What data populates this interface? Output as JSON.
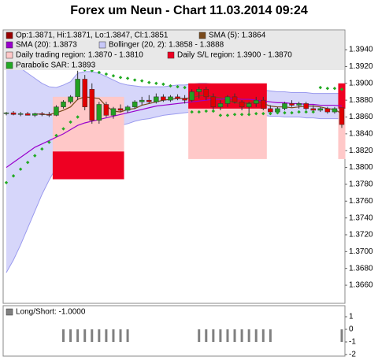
{
  "chart_data": [
    {
      "type": "candlestick",
      "title": "Forex um Neun - Chart 11.03.2014 09:24",
      "ylim": [
        1.36385,
        1.39635
      ],
      "yticks": [
        {
          "value": 1.366,
          "label": "1.3660"
        },
        {
          "value": 1.368,
          "label": "1.3680"
        },
        {
          "value": 1.37,
          "label": "1.3700"
        },
        {
          "value": 1.372,
          "label": "1.3720"
        },
        {
          "value": 1.374,
          "label": "1.3740"
        },
        {
          "value": 1.376,
          "label": "1.3760"
        },
        {
          "value": 1.378,
          "label": "1.3780"
        },
        {
          "value": 1.38,
          "label": "1.3800"
        },
        {
          "value": 1.382,
          "label": "1.3820"
        },
        {
          "value": 1.384,
          "label": "1.3840"
        },
        {
          "value": 1.386,
          "label": "1.3860"
        },
        {
          "value": 1.388,
          "label": "1.3880"
        },
        {
          "value": 1.39,
          "label": "1.3900"
        },
        {
          "value": 1.392,
          "label": "1.3920"
        },
        {
          "value": 1.394,
          "label": "1.3940"
        }
      ],
      "series": [
        {
          "name": "Op:1.3871, Hi:1.3871, Lo:1.3847, Cl:1.3851",
          "kind": "candlestick",
          "color": "#990000",
          "up_color": "#22a022",
          "down_color": "#e00000",
          "open": [
            1.3864,
            1.3865,
            1.3863,
            1.3864,
            1.3862,
            1.3864,
            1.3863,
            1.3862,
            1.3872,
            1.3878,
            1.3884,
            1.3905,
            1.3893,
            1.3856,
            1.3875,
            1.3862,
            1.387,
            1.3868,
            1.3872,
            1.3878,
            1.388,
            1.3878,
            1.3884,
            1.388,
            1.3884,
            1.3882,
            1.388,
            1.389,
            1.3893,
            1.3884,
            1.3872,
            1.3876,
            1.3884,
            1.3878,
            1.3872,
            1.3876,
            1.388,
            1.387,
            1.3866,
            1.387,
            1.3876,
            1.3874,
            1.3876,
            1.387,
            1.3868,
            1.387,
            1.3866,
            1.3871
          ],
          "high": [
            1.3866,
            1.3867,
            1.3866,
            1.3866,
            1.3865,
            1.3866,
            1.3866,
            1.3874,
            1.388,
            1.3886,
            1.3915,
            1.391,
            1.39,
            1.3878,
            1.3878,
            1.3872,
            1.3875,
            1.3874,
            1.388,
            1.3884,
            1.3886,
            1.3888,
            1.3887,
            1.3886,
            1.3887,
            1.3886,
            1.3893,
            1.3896,
            1.3896,
            1.3888,
            1.388,
            1.3886,
            1.3888,
            1.388,
            1.3878,
            1.3884,
            1.3884,
            1.3874,
            1.3872,
            1.3878,
            1.388,
            1.3878,
            1.3878,
            1.3874,
            1.3872,
            1.3872,
            1.3872,
            1.3871
          ],
          "low": [
            1.3862,
            1.3862,
            1.3861,
            1.3862,
            1.386,
            1.3861,
            1.386,
            1.3861,
            1.387,
            1.3876,
            1.388,
            1.3868,
            1.3852,
            1.3852,
            1.386,
            1.3858,
            1.3866,
            1.3865,
            1.387,
            1.3874,
            1.3876,
            1.3876,
            1.3878,
            1.3878,
            1.388,
            1.3876,
            1.3878,
            1.3882,
            1.388,
            1.3868,
            1.3868,
            1.3872,
            1.3876,
            1.3868,
            1.3864,
            1.3872,
            1.3868,
            1.3864,
            1.3864,
            1.3868,
            1.3872,
            1.387,
            1.3868,
            1.3866,
            1.3866,
            1.3864,
            1.3864,
            1.3847
          ],
          "close": [
            1.3865,
            1.3863,
            1.3864,
            1.3862,
            1.3864,
            1.3863,
            1.3862,
            1.3872,
            1.3878,
            1.3884,
            1.3905,
            1.3872,
            1.3856,
            1.3875,
            1.3862,
            1.387,
            1.3868,
            1.3872,
            1.3878,
            1.388,
            1.3878,
            1.3884,
            1.388,
            1.3884,
            1.3882,
            1.388,
            1.389,
            1.3893,
            1.3884,
            1.3872,
            1.3876,
            1.3884,
            1.3878,
            1.3872,
            1.3876,
            1.388,
            1.387,
            1.3866,
            1.387,
            1.3876,
            1.3874,
            1.3876,
            1.387,
            1.3868,
            1.387,
            1.3866,
            1.387,
            1.3851
          ]
        },
        {
          "name": "SMA (5): 1.3864",
          "kind": "line",
          "color": "#7a4a1a",
          "values": [
            null,
            null,
            null,
            null,
            1.3864,
            1.3863,
            1.3863,
            1.3865,
            1.3868,
            1.3872,
            1.3881,
            1.3884,
            1.3883,
            1.3882,
            1.3873,
            1.3867,
            1.3866,
            1.3869,
            1.387,
            1.3874,
            1.3876,
            1.3878,
            1.388,
            1.3881,
            1.3882,
            1.3882,
            1.3883,
            1.3885,
            1.3886,
            1.3884,
            1.3883,
            1.388,
            1.3877,
            1.3876,
            1.3877,
            1.3878,
            1.3876,
            1.3873,
            1.3872,
            1.3872,
            1.3871,
            1.3872,
            1.3873,
            1.3873,
            1.3872,
            1.387,
            1.3869,
            1.3864
          ]
        },
        {
          "name": "SMA (20): 1.3873",
          "kind": "line",
          "color": "#9900cc",
          "values": [
            1.38,
            1.3806,
            1.3812,
            1.3818,
            1.3824,
            1.3828,
            1.3832,
            1.3836,
            1.384,
            1.3845,
            1.385,
            1.3853,
            1.3855,
            1.3857,
            1.3859,
            1.3861,
            1.3863,
            1.3865,
            1.3867,
            1.3869,
            1.3871,
            1.3873,
            1.3874,
            1.3875,
            1.3876,
            1.3877,
            1.3878,
            1.3879,
            1.388,
            1.3881,
            1.3881,
            1.3882,
            1.3882,
            1.3881,
            1.3881,
            1.388,
            1.3879,
            1.3878,
            1.3877,
            1.3877,
            1.3876,
            1.3876,
            1.3875,
            1.3875,
            1.3874,
            1.3874,
            1.3874,
            1.3873
          ]
        },
        {
          "name": "Bollinger (20, 2): 1.3858 - 1.3888",
          "kind": "band",
          "color": "#c8c8f8",
          "upper": [
            1.3926,
            1.3922,
            1.3918,
            1.3912,
            1.3906,
            1.39,
            1.3896,
            1.3895,
            1.3898,
            1.3902,
            1.3912,
            1.3914,
            1.3914,
            1.3912,
            1.3908,
            1.3904,
            1.39,
            1.3898,
            1.3897,
            1.3896,
            1.3896,
            1.3896,
            1.3896,
            1.3897,
            1.3898,
            1.3898,
            1.3899,
            1.39,
            1.39,
            1.3899,
            1.3898,
            1.3898,
            1.3897,
            1.3896,
            1.3894,
            1.3893,
            1.3892,
            1.3891,
            1.389,
            1.389,
            1.3889,
            1.3889,
            1.3889,
            1.3888,
            1.3888,
            1.3888,
            1.3888,
            1.3888
          ],
          "lower": [
            1.3675,
            1.369,
            1.3708,
            1.3728,
            1.3748,
            1.3768,
            1.3785,
            1.38,
            1.3812,
            1.382,
            1.3825,
            1.383,
            1.3834,
            1.3838,
            1.3842,
            1.3846,
            1.385,
            1.3852,
            1.3855,
            1.3857,
            1.3858,
            1.386,
            1.3862,
            1.3863,
            1.3864,
            1.3865,
            1.3866,
            1.3866,
            1.3866,
            1.3866,
            1.3866,
            1.3866,
            1.3866,
            1.3865,
            1.3864,
            1.3863,
            1.3862,
            1.3861,
            1.3861,
            1.386,
            1.386,
            1.386,
            1.3859,
            1.3859,
            1.3858,
            1.3858,
            1.3858,
            1.3858
          ]
        },
        {
          "name": "Daily trading region: 1.3870 - 1.3810",
          "kind": "region",
          "color": "#ffc8c8",
          "high": [
            null,
            null,
            null,
            null,
            null,
            null,
            null,
            1.3884,
            1.3884,
            1.3884,
            1.3884,
            1.3884,
            1.3884,
            1.3884,
            1.3884,
            1.3884,
            1.3884,
            null,
            null,
            null,
            null,
            null,
            null,
            null,
            null,
            null,
            1.387,
            1.387,
            1.387,
            1.387,
            1.387,
            1.387,
            1.387,
            1.387,
            1.387,
            1.387,
            1.387,
            null,
            null,
            null,
            null,
            null,
            null,
            null,
            null,
            null,
            null,
            1.387
          ],
          "low": [
            null,
            null,
            null,
            null,
            null,
            null,
            null,
            1.3819,
            1.3819,
            1.3819,
            1.3819,
            1.3819,
            1.3819,
            1.3819,
            1.3819,
            1.3819,
            1.3819,
            null,
            null,
            null,
            null,
            null,
            null,
            null,
            null,
            null,
            1.381,
            1.381,
            1.381,
            1.381,
            1.381,
            1.381,
            1.381,
            1.381,
            1.381,
            1.381,
            1.381,
            null,
            null,
            null,
            null,
            null,
            null,
            null,
            null,
            null,
            null,
            1.381
          ]
        },
        {
          "name": "Daily S/L region: 1.3900 - 1.3870",
          "kind": "region",
          "color": "#ee0022",
          "high": [
            null,
            null,
            null,
            null,
            null,
            null,
            null,
            1.3819,
            1.3819,
            1.3819,
            1.3819,
            1.3819,
            1.3819,
            1.3819,
            1.3819,
            1.3819,
            1.3819,
            null,
            null,
            null,
            null,
            null,
            null,
            null,
            null,
            null,
            1.39,
            1.39,
            1.39,
            1.39,
            1.39,
            1.39,
            1.39,
            1.39,
            1.39,
            1.39,
            1.39,
            null,
            null,
            null,
            null,
            null,
            null,
            null,
            null,
            null,
            null,
            1.39
          ],
          "low": [
            null,
            null,
            null,
            null,
            null,
            null,
            null,
            1.3786,
            1.3786,
            1.3786,
            1.3786,
            1.3786,
            1.3786,
            1.3786,
            1.3786,
            1.3786,
            1.3786,
            null,
            null,
            null,
            null,
            null,
            null,
            null,
            null,
            null,
            1.387,
            1.387,
            1.387,
            1.387,
            1.387,
            1.387,
            1.387,
            1.387,
            1.387,
            1.387,
            1.387,
            null,
            null,
            null,
            null,
            null,
            null,
            null,
            null,
            null,
            null,
            1.387
          ]
        },
        {
          "name": "Parabolic SAR: 1.3893",
          "kind": "dots",
          "color": "#22aa22",
          "values": [
            1.3782,
            1.379,
            1.3798,
            1.3806,
            1.3814,
            1.3822,
            1.383,
            1.3838,
            1.3846,
            1.3854,
            1.386,
            1.3916,
            1.3915,
            1.3913,
            1.3911,
            1.3909,
            1.3907,
            1.3906,
            1.3904,
            1.3903,
            1.3901,
            1.39,
            1.3899,
            1.3897,
            1.3896,
            1.3895,
            1.3866,
            1.3866,
            1.3867,
            1.3867,
            1.3862,
            1.3862,
            1.3863,
            1.3863,
            1.3863,
            1.3864,
            1.3864,
            1.3864,
            1.3865,
            1.3865,
            1.3865,
            1.3866,
            1.3866,
            1.3866,
            1.3895,
            1.3894,
            1.3894,
            1.3893
          ]
        }
      ]
    },
    {
      "type": "bar",
      "ylim": [
        -2.125,
        1.875
      ],
      "yticks": [
        1,
        0,
        -1,
        -2
      ],
      "series": [
        {
          "name": "Long/Short: -1.0000",
          "color": "#808080",
          "values": [
            0,
            0,
            0,
            0,
            0,
            0,
            0,
            0,
            -1,
            -1,
            -1,
            -1,
            -1,
            -1,
            -1,
            -1,
            -1,
            -1,
            0,
            0,
            0,
            0,
            0,
            0,
            0,
            0,
            0,
            -1,
            -1,
            -1,
            -1,
            -1,
            -1,
            -1,
            -1,
            -1,
            -1,
            -1,
            0,
            0,
            0,
            0,
            0,
            0,
            0,
            0,
            0,
            -1
          ]
        }
      ]
    }
  ]
}
